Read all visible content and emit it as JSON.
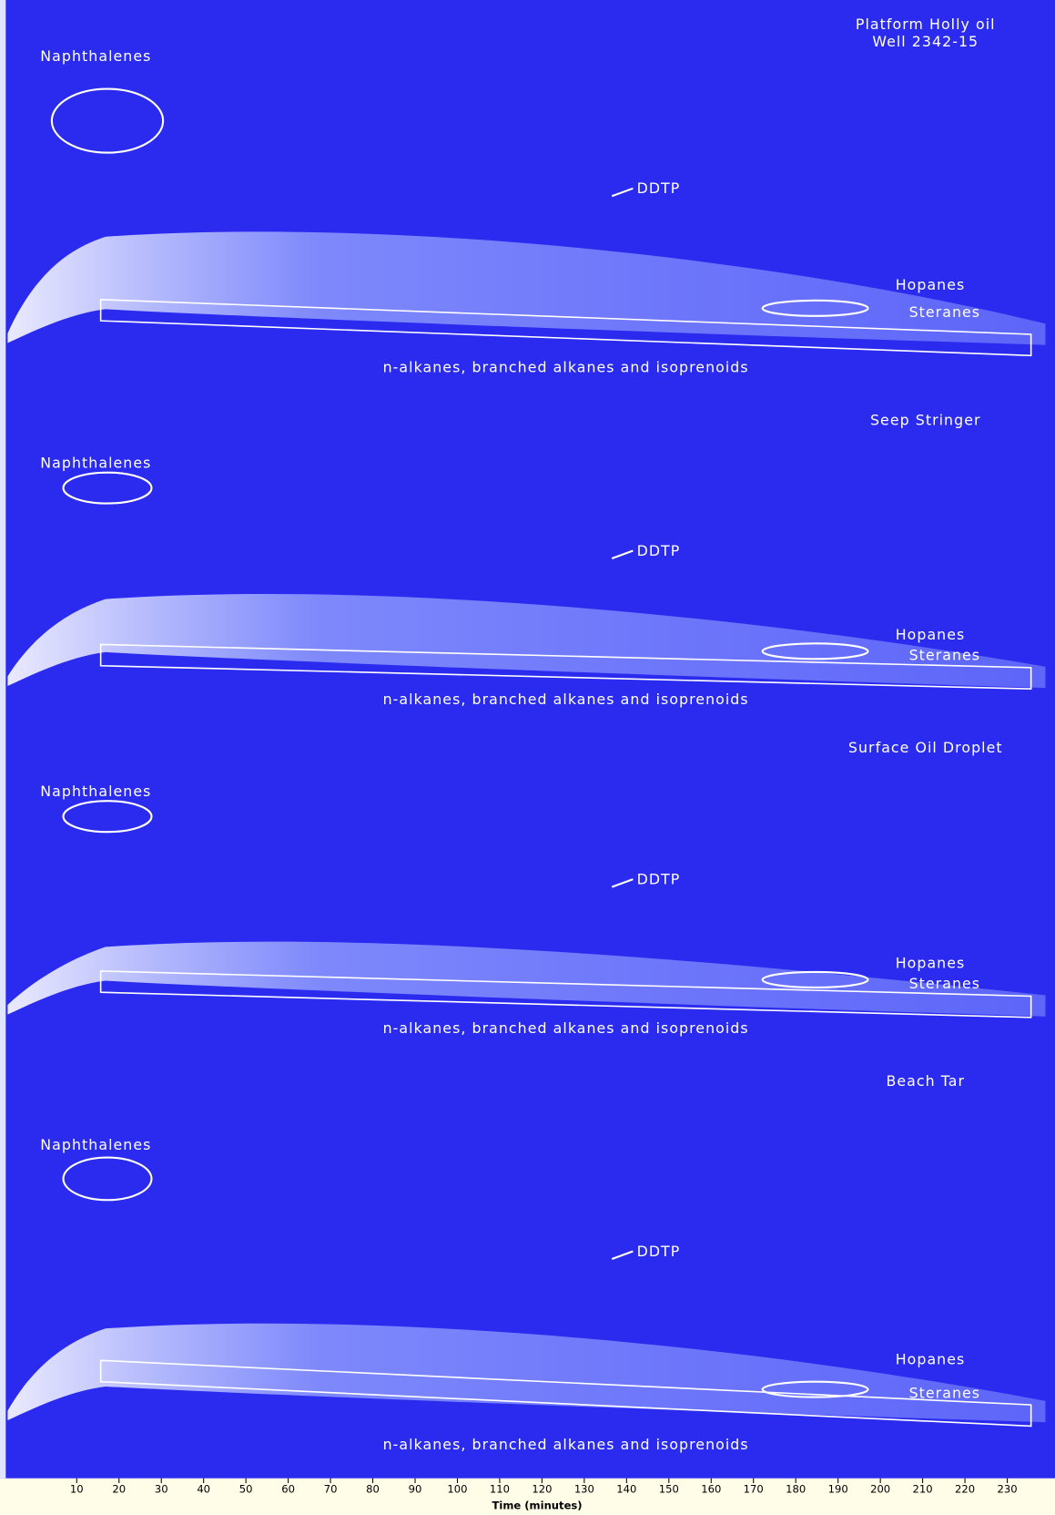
{
  "panels": [
    {
      "title": [
        "Platform Holly oil",
        "Well 2342-15"
      ],
      "naphthalenes": "Naphthalenes",
      "ddtp": "DDTP",
      "hopanes": "Hopanes",
      "steranes": "Steranes",
      "alkanes": "n-alkanes, branched alkanes and isoprenoids"
    },
    {
      "title": [
        "Seep Stringer"
      ],
      "naphthalenes": "Naphthalenes",
      "ddtp": "DDTP",
      "hopanes": "Hopanes",
      "steranes": "Steranes",
      "alkanes": "n-alkanes, branched alkanes and isoprenoids"
    },
    {
      "title": [
        "Surface Oil Droplet"
      ],
      "naphthalenes": "Naphthalenes",
      "ddtp": "DDTP",
      "hopanes": "Hopanes",
      "steranes": "Steranes",
      "alkanes": "n-alkanes, branched alkanes and isoprenoids"
    },
    {
      "title": [
        "Beach Tar"
      ],
      "naphthalenes": "Naphthalenes",
      "ddtp": "DDTP",
      "hopanes": "Hopanes",
      "steranes": "Steranes",
      "alkanes": "n-alkanes, branched alkanes and isoprenoids"
    }
  ],
  "axis": {
    "ticks": [
      10,
      20,
      30,
      40,
      50,
      60,
      70,
      80,
      90,
      100,
      110,
      120,
      130,
      140,
      150,
      160,
      170,
      180,
      190,
      200,
      210,
      220,
      230
    ],
    "label": "Time (minutes)"
  }
}
